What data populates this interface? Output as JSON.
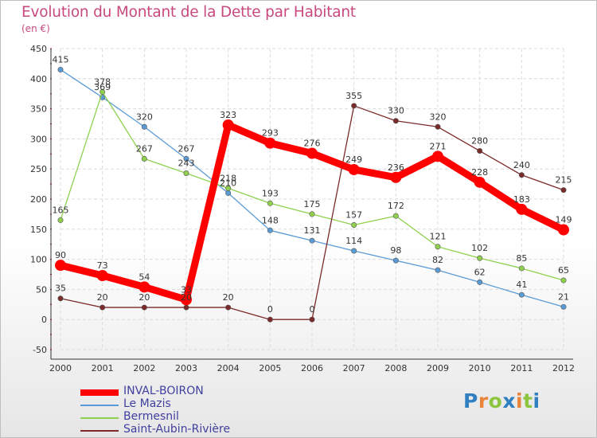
{
  "title": "Evolution du Montant de la Dette par Habitant",
  "unit_label": "(en €)",
  "logo": {
    "text": "Proxiti",
    "letters": [
      {
        "ch": "P",
        "color": "#2f7fc1"
      },
      {
        "ch": "r",
        "color": "#e8853b"
      },
      {
        "ch": "o",
        "color": "#8cc63f"
      },
      {
        "ch": "x",
        "color": "#2f7fc1"
      },
      {
        "ch": "i",
        "color": "#e8853b"
      },
      {
        "ch": "t",
        "color": "#8cc63f"
      },
      {
        "ch": "i",
        "color": "#2f7fc1"
      }
    ]
  },
  "chart_data": {
    "type": "line",
    "x": [
      "2000",
      "2001",
      "2002",
      "2003",
      "2004",
      "2005",
      "2006",
      "2007",
      "2008",
      "2009",
      "2010",
      "2011",
      "2012"
    ],
    "ylim": [
      -50,
      450
    ],
    "yticks": [
      -50,
      0,
      50,
      100,
      150,
      200,
      250,
      300,
      350,
      400,
      450
    ],
    "grid": true,
    "legend_position": "bottom-left",
    "series": [
      {
        "name": "INVAL-BOIRON",
        "color": "#ff0000",
        "values": [
          90,
          73,
          54,
          33,
          323,
          293,
          276,
          249,
          236,
          271,
          228,
          183,
          149
        ]
      },
      {
        "name": "Le Mazis",
        "color": "#5b9bd5",
        "values": [
          415,
          369,
          320,
          267,
          210,
          148,
          131,
          114,
          98,
          82,
          62,
          41,
          21
        ]
      },
      {
        "name": "Bermesnil",
        "color": "#8fd14f",
        "values": [
          165,
          378,
          267,
          243,
          218,
          193,
          175,
          157,
          172,
          121,
          102,
          85,
          65
        ]
      },
      {
        "name": "Saint-Aubin-Rivière",
        "color": "#7b2a2a",
        "values": [
          35,
          20,
          20,
          20,
          20,
          0,
          0,
          355,
          330,
          320,
          280,
          240,
          215
        ]
      }
    ]
  }
}
